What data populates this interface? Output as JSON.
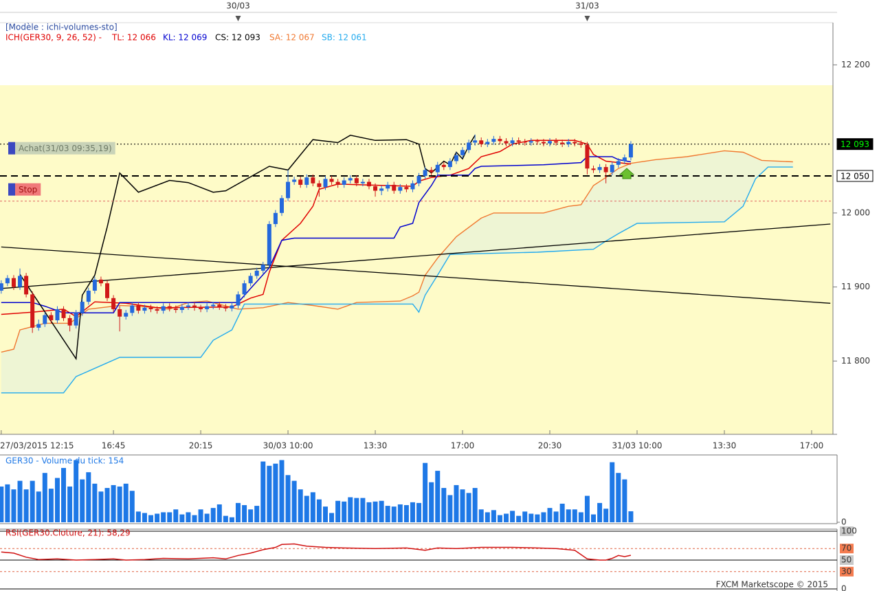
{
  "footer": "FXCM Marketscope © 2015",
  "chart_data": [
    {
      "type": "candlestick",
      "model_label": "[Modèle : ichi-volumes-sto]",
      "indicator": {
        "label": "ICH(GER30, 9, 26, 52) -",
        "color": "#e00000"
      },
      "readouts": [
        {
          "text": "TL: 12 066",
          "color": "#e00000"
        },
        {
          "text": "KL: 12 069",
          "color": "#0000d0"
        },
        {
          "text": "CS: 12 093",
          "color": "#000000"
        },
        {
          "text": "SA: 12 067",
          "color": "#f07830"
        },
        {
          "text": "SB: 12 061",
          "color": "#22aaee"
        }
      ],
      "xlim": [
        -0.2,
        133.2
      ],
      "xticks": [
        {
          "value": 0,
          "label": "27/03/2015 12:15"
        },
        {
          "value": 18,
          "label": "16:45"
        },
        {
          "value": 32,
          "label": "20:15"
        },
        {
          "value": 46,
          "label": "30/03 10:00"
        },
        {
          "value": 60,
          "label": "13:30"
        },
        {
          "value": 74,
          "label": "17:00"
        },
        {
          "value": 88,
          "label": "20:30"
        },
        {
          "value": 102,
          "label": "31/03 10:00"
        },
        {
          "value": 116,
          "label": "13:30"
        },
        {
          "value": 130,
          "label": "17:00"
        }
      ],
      "day_ticks": [
        {
          "value": 38,
          "label": "30/03"
        },
        {
          "value": 94,
          "label": "31/03"
        }
      ],
      "ylim": [
        11701,
        12257
      ],
      "yticks": [
        {
          "value": 11800,
          "label": "11 800"
        },
        {
          "value": 11900,
          "label": "11 900"
        },
        {
          "value": 12000,
          "label": "12 000"
        },
        {
          "value": 12200,
          "label": "12 200"
        }
      ],
      "up_color": "#2468dc",
      "down_color": "#d01818",
      "open": [
        11895,
        11905,
        11912,
        11900,
        11915,
        11890,
        11845,
        11850,
        11862,
        11855,
        11870,
        11858,
        11848,
        11865,
        11880,
        11895,
        11910,
        11905,
        11885,
        11870,
        11860,
        11865,
        11875,
        11868,
        11872,
        11870,
        11868,
        11874,
        11871,
        11869,
        11873,
        11875,
        11872,
        11870,
        11874,
        11876,
        11873,
        11871,
        11875,
        11890,
        11905,
        11915,
        11922,
        11930,
        11985,
        12000,
        12020,
        12042,
        12045,
        12038,
        12048,
        12040,
        12035,
        12046,
        12042,
        12038,
        12044,
        12047,
        12040,
        12042,
        12036,
        12030,
        12033,
        12038,
        12030,
        12035,
        12032,
        12040,
        12050,
        12058,
        12055,
        12065,
        12062,
        12070,
        12078,
        12085,
        12095,
        12098,
        12093,
        12096,
        12100,
        12097,
        12094,
        12098,
        12096,
        12095,
        12097,
        12096,
        12094,
        12097,
        12095,
        12093,
        12096,
        12094,
        12092,
        12060,
        12058,
        12062,
        12055,
        12065,
        12070,
        12075
      ],
      "high": [
        11909,
        11916,
        11916,
        11925,
        11919,
        11894,
        11856,
        11866,
        11866,
        11874,
        11874,
        11862,
        11869,
        11884,
        11899,
        11914,
        11914,
        11909,
        11889,
        11874,
        11869,
        11879,
        11879,
        11876,
        11876,
        11874,
        11878,
        11878,
        11875,
        11877,
        11879,
        11879,
        11876,
        11878,
        11880,
        11880,
        11877,
        11879,
        11894,
        11909,
        11919,
        11926,
        11934,
        11989,
        12004,
        12024,
        12058,
        12049,
        12049,
        12052,
        12052,
        12044,
        12050,
        12050,
        12046,
        12048,
        12051,
        12051,
        12046,
        12046,
        12040,
        12037,
        12042,
        12042,
        12039,
        12039,
        12044,
        12054,
        12062,
        12062,
        12069,
        12069,
        12074,
        12082,
        12089,
        12099,
        12106,
        12102,
        12100,
        12104,
        12104,
        12101,
        12102,
        12102,
        12100,
        12101,
        12100,
        12100,
        12101,
        12101,
        12099,
        12100,
        12100,
        12098,
        12096,
        12064,
        12066,
        12066,
        12069,
        12074,
        12079,
        12097
      ],
      "low": [
        11891,
        11901,
        11896,
        11896,
        11886,
        11838,
        11841,
        11846,
        11851,
        11851,
        11854,
        11840,
        11844,
        11861,
        11876,
        11891,
        11901,
        11881,
        11866,
        11840,
        11856,
        11861,
        11864,
        11864,
        11866,
        11864,
        11864,
        11867,
        11865,
        11865,
        11869,
        11868,
        11866,
        11866,
        11870,
        11869,
        11867,
        11867,
        11871,
        11886,
        11901,
        11911,
        11918,
        11926,
        11981,
        11996,
        12016,
        12038,
        12034,
        12034,
        12036,
        12022,
        12031,
        12038,
        12034,
        12034,
        12040,
        12036,
        12036,
        12032,
        12022,
        12024,
        12029,
        12026,
        12026,
        12028,
        12028,
        12036,
        12046,
        12051,
        12051,
        12058,
        12058,
        12066,
        12074,
        12081,
        12091,
        12089,
        12089,
        12092,
        12093,
        12090,
        12090,
        12092,
        12091,
        12091,
        12092,
        12090,
        12090,
        12091,
        12089,
        12089,
        12090,
        12088,
        12052,
        12054,
        12054,
        12040,
        12051,
        12061,
        12066,
        12071
      ],
      "close": [
        11905,
        11912,
        11900,
        11915,
        11890,
        11845,
        11850,
        11862,
        11855,
        11870,
        11858,
        11848,
        11865,
        11880,
        11895,
        11910,
        11905,
        11885,
        11870,
        11860,
        11865,
        11875,
        11868,
        11872,
        11870,
        11868,
        11874,
        11871,
        11869,
        11873,
        11875,
        11872,
        11870,
        11874,
        11876,
        11873,
        11871,
        11875,
        11890,
        11905,
        11915,
        11922,
        11930,
        11985,
        12000,
        12020,
        12042,
        12045,
        12038,
        12048,
        12040,
        12035,
        12046,
        12042,
        12038,
        12044,
        12047,
        12040,
        12042,
        12036,
        12030,
        12033,
        12038,
        12030,
        12035,
        12032,
        12040,
        12050,
        12058,
        12055,
        12065,
        12062,
        12070,
        12078,
        12085,
        12095,
        12098,
        12093,
        12096,
        12100,
        12097,
        12094,
        12098,
        12096,
        12095,
        12097,
        12096,
        12094,
        12097,
        12095,
        12093,
        12096,
        12094,
        12092,
        12060,
        12058,
        12062,
        12055,
        12065,
        12070,
        12075,
        12093
      ],
      "cloud": {
        "color": "#eef5d4",
        "lines": [
          {
            "color": "#f07830",
            "x": [
              0,
              2,
              3,
              7,
              11,
              14,
              19,
              22,
              27,
              30,
              33,
              38,
              42,
              46,
              50,
              54,
              57,
              64,
              66,
              67,
              68,
              70,
              73,
              77,
              79,
              87,
              91,
              93,
              95,
              97,
              99,
              101,
              105,
              110,
              116,
              119,
              122,
              127
            ],
            "values": [
              11812,
              11816,
              11842,
              11851,
              11851,
              11870,
              11875,
              11874,
              11870,
              11879,
              11881,
              11870,
              11872,
              11879,
              11875,
              11870,
              11879,
              11881,
              11888,
              11893,
              11916,
              11939,
              11968,
              11993,
              12000,
              12000,
              12009,
              12011,
              12037,
              12048,
              12060,
              12067,
              12072,
              12076,
              12084,
              12082,
              12071,
              12069
            ]
          },
          {
            "color": "#22aaee",
            "x": [
              0,
              10,
              12,
              19,
              32,
              34,
              37,
              39,
              66,
              67,
              68,
              70,
              72,
              86,
              95,
              97,
              99,
              102,
              116,
              119,
              121,
              123,
              127
            ],
            "values": [
              11757,
              11757,
              11779,
              11805,
              11805,
              11828,
              11842,
              11877,
              11877,
              11866,
              11889,
              11916,
              11944,
              11947,
              11951,
              11962,
              11972,
              11986,
              11988,
              12009,
              12046,
              12062,
              12062
            ]
          }
        ]
      },
      "lines": [
        {
          "color": "#e00000",
          "x": [
            0,
            5,
            10,
            12,
            15,
            20,
            25,
            37,
            40,
            42,
            43,
            45,
            48,
            50,
            51,
            54,
            66,
            67,
            69,
            72,
            75,
            77,
            80,
            82,
            85,
            92,
            94,
            95,
            97,
            101
          ],
          "values": [
            11863,
            11866,
            11870,
            11860,
            11880,
            11878,
            11872,
            11873,
            11885,
            11890,
            11920,
            11963,
            11986,
            12009,
            12032,
            12039,
            12036,
            12043,
            12048,
            12051,
            12060,
            12076,
            12083,
            12093,
            12098,
            12098,
            12093,
            12079,
            12070,
            12066
          ]
        },
        {
          "color": "#0000d0",
          "x": [
            0,
            5,
            7,
            10,
            18,
            19,
            38,
            40,
            43,
            45,
            47,
            63,
            64,
            66,
            67,
            69,
            70,
            75,
            76,
            77,
            87,
            93,
            94,
            98,
            99,
            101
          ],
          "values": [
            11879,
            11879,
            11874,
            11865,
            11865,
            11879,
            11879,
            11898,
            11926,
            11963,
            11966,
            11966,
            11981,
            11986,
            12014,
            12037,
            12051,
            12051,
            12060,
            12063,
            12065,
            12068,
            12076,
            12076,
            12072,
            12069
          ]
        },
        {
          "color": "#000000",
          "x": [
            3,
            12,
            13,
            15,
            17,
            19,
            22,
            27,
            30,
            34,
            36,
            43,
            46,
            50,
            54,
            56,
            60,
            65,
            67,
            68,
            69,
            71,
            72,
            73,
            74,
            75,
            76
          ],
          "values": [
            11917,
            11803,
            11889,
            11916,
            11981,
            12054,
            12028,
            12044,
            12041,
            12028,
            12030,
            12063,
            12058,
            12099,
            12095,
            12105,
            12098,
            12099,
            12093,
            12060,
            12054,
            12070,
            12065,
            12082,
            12073,
            12091,
            12105
          ]
        }
      ],
      "trendlines": [
        {
          "color": "#000000",
          "x": [
            0,
            133
          ],
          "values": [
            11954,
            11878
          ]
        },
        {
          "color": "#000000",
          "x": [
            0,
            133
          ],
          "values": [
            11898,
            11985
          ]
        }
      ],
      "levels": [
        {
          "value": 12093,
          "label": "12 093",
          "style": "dotted",
          "label_color": "#00ff00",
          "label_background": "#000000",
          "order": "Achat(31/03 09:35,19)",
          "order_background": "#c9d3b8",
          "order_color": "#6e7a66"
        },
        {
          "value": 12050,
          "label": "12 050",
          "style": "dashed",
          "label_color": "#000000",
          "label_background": "#ffffff"
        },
        {
          "value": 12016,
          "style": "dashed-red",
          "order": "Stop",
          "order_background": "#f07a7a",
          "order_color": "#a01010"
        }
      ]
    },
    {
      "type": "bar",
      "title": "GER30 - Volume du tick: 154",
      "color": "#1e78e6",
      "values": [
        500,
        530,
        460,
        580,
        460,
        580,
        430,
        690,
        470,
        620,
        760,
        500,
        870,
        600,
        700,
        540,
        430,
        480,
        520,
        500,
        540,
        440,
        150,
        130,
        100,
        120,
        140,
        140,
        180,
        110,
        140,
        100,
        180,
        120,
        200,
        250,
        90,
        70,
        270,
        240,
        180,
        230,
        850,
        790,
        820,
        870,
        660,
        580,
        460,
        370,
        420,
        320,
        220,
        130,
        300,
        290,
        350,
        340,
        340,
        280,
        290,
        300,
        230,
        220,
        250,
        240,
        280,
        270,
        830,
        560,
        720,
        480,
        380,
        520,
        460,
        410,
        480,
        180,
        140,
        170,
        100,
        120,
        160,
        90,
        150,
        120,
        110,
        140,
        200,
        150,
        260,
        180,
        180,
        140,
        370,
        110,
        270,
        190,
        840,
        690,
        600,
        154
      ],
      "ylim": [
        0,
        942
      ],
      "yticks": [
        0
      ]
    },
    {
      "type": "line",
      "title": "RSI(GER30.Cloture, 21): 58,29",
      "color": "#d01010",
      "x": [
        0,
        2,
        4,
        6,
        9,
        12,
        15,
        18,
        20,
        23,
        26,
        30,
        34,
        36,
        38,
        40,
        42,
        44,
        45,
        47,
        49,
        52,
        55,
        60,
        65,
        68,
        70,
        73,
        77,
        82,
        86,
        89,
        92,
        94,
        96,
        97,
        98,
        99,
        100,
        101
      ],
      "values": [
        64,
        62,
        55,
        51,
        52,
        50,
        51,
        52,
        50,
        51,
        53,
        52,
        54,
        52,
        58,
        62,
        68,
        72,
        77,
        78,
        74,
        72,
        71,
        70,
        71,
        67,
        71,
        70,
        72,
        72,
        71,
        70,
        67,
        52,
        50,
        50,
        53,
        58,
        56,
        58.29
      ],
      "ylim": [
        0,
        100
      ],
      "yticks": [
        0,
        30,
        50,
        70,
        100
      ],
      "grid_styles": [
        "solid",
        "dashed",
        "solid",
        "dashed",
        "solid"
      ],
      "tick_backgrounds": [
        "none",
        "#f47c50",
        "#c8c8c8",
        "#f47c50",
        "#c8c8c8"
      ]
    }
  ]
}
